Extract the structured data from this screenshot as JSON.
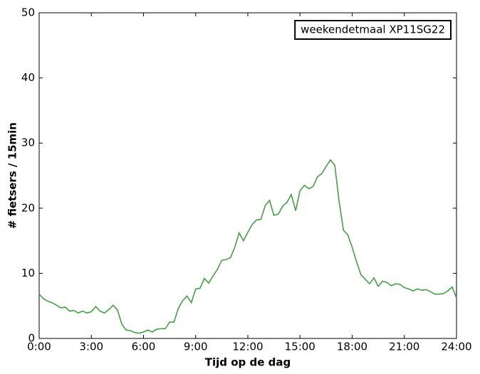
{
  "chart_data": {
    "type": "line",
    "xlabel": "Tijd op de dag",
    "ylabel": "# fietsers / 15min",
    "x": [
      0,
      0.25,
      0.5,
      0.75,
      1,
      1.25,
      1.5,
      1.75,
      2,
      2.25,
      2.5,
      2.75,
      3,
      3.25,
      3.5,
      3.75,
      4,
      4.25,
      4.5,
      4.75,
      5,
      5.25,
      5.5,
      5.75,
      6,
      6.25,
      6.5,
      6.75,
      7,
      7.25,
      7.5,
      7.75,
      8,
      8.25,
      8.5,
      8.75,
      9,
      9.25,
      9.5,
      9.75,
      10,
      10.25,
      10.5,
      10.75,
      11,
      11.25,
      11.5,
      11.75,
      12,
      12.25,
      12.5,
      12.75,
      13,
      13.25,
      13.5,
      13.75,
      14,
      14.25,
      14.5,
      14.75,
      15,
      15.25,
      15.5,
      15.75,
      16,
      16.25,
      16.5,
      16.75,
      17,
      17.25,
      17.5,
      17.75,
      18,
      18.25,
      18.5,
      18.75,
      19,
      19.25,
      19.5,
      19.75,
      20,
      20.25,
      20.5,
      20.75,
      21,
      21.25,
      21.5,
      21.75,
      22,
      22.25,
      22.5,
      22.75,
      23,
      23.25,
      23.5,
      23.75,
      24
    ],
    "series": [
      {
        "name": "weekendetmaal XP11SG22",
        "color": "#44a044",
        "values": [
          6.8,
          6.1,
          5.7,
          5.5,
          5.1,
          4.7,
          4.8,
          4.2,
          4.3,
          3.9,
          4.2,
          3.9,
          4.1,
          4.9,
          4.2,
          3.9,
          4.4,
          5.1,
          4.4,
          2.2,
          1.3,
          1.2,
          0.9,
          0.8,
          1.0,
          1.3,
          1.0,
          1.4,
          1.5,
          1.5,
          2.5,
          2.5,
          4.6,
          5.8,
          6.5,
          5.5,
          7.6,
          7.7,
          9.2,
          8.5,
          9.6,
          10.6,
          12.0,
          12.1,
          12.4,
          14.0,
          16.2,
          15.0,
          16.3,
          17.5,
          18.2,
          18.3,
          20.4,
          21.2,
          18.9,
          19.1,
          20.3,
          20.9,
          22.1,
          19.6,
          22.7,
          23.5,
          23.0,
          23.3,
          24.8,
          25.3,
          26.4,
          27.4,
          26.6,
          21.0,
          16.6,
          15.9,
          14.0,
          11.8,
          9.8,
          9.1,
          8.4,
          9.3,
          8.0,
          8.8,
          8.6,
          8.1,
          8.4,
          8.3,
          7.8,
          7.6,
          7.3,
          7.6,
          7.4,
          7.5,
          7.2,
          6.8,
          6.8,
          6.9,
          7.3,
          7.9,
          6.2
        ]
      }
    ],
    "xlim": [
      0,
      24
    ],
    "xticks": [
      {
        "value": 0,
        "label": "0:00"
      },
      {
        "value": 3,
        "label": "3:00"
      },
      {
        "value": 6,
        "label": "6:00"
      },
      {
        "value": 9,
        "label": "9:00"
      },
      {
        "value": 12,
        "label": "12:00"
      },
      {
        "value": 15,
        "label": "15:00"
      },
      {
        "value": 18,
        "label": "18:00"
      },
      {
        "value": 21,
        "label": "21:00"
      },
      {
        "value": 24,
        "label": "24:00"
      }
    ],
    "ylim": [
      0,
      50
    ],
    "yticks": [
      0,
      10,
      20,
      30,
      40,
      50
    ],
    "legend": "upper right"
  }
}
